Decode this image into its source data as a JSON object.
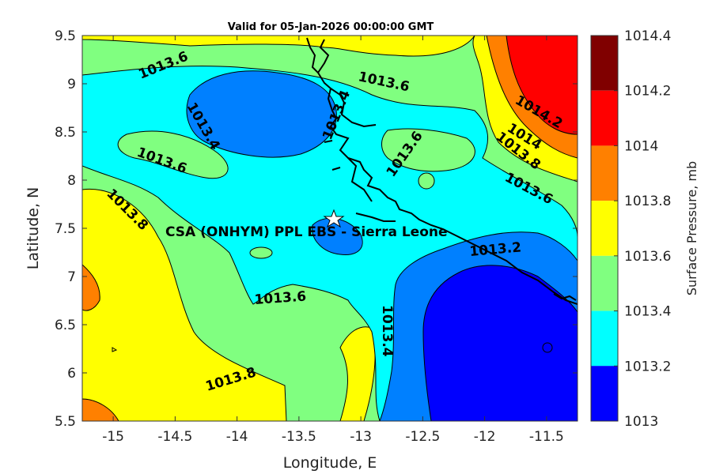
{
  "title": "Valid for 05-Jan-2026 00:00:00 GMT",
  "x_axis": {
    "label": "Longitude, E",
    "ticks": [
      "-15",
      "-14.5",
      "-14",
      "-13.5",
      "-13",
      "-12.5",
      "-12",
      "-11.5"
    ]
  },
  "y_axis": {
    "label": "Latitude, N",
    "ticks": [
      "9.5",
      "9",
      "8.5",
      "8",
      "7.5",
      "7",
      "6.5",
      "6",
      "5.5"
    ]
  },
  "site": {
    "label": "CSA (ONHYM) PPL EBS  - Sierra Leone",
    "marker": "star"
  },
  "colorbar": {
    "label": "Surface Pressure, mb",
    "levels": [
      {
        "value": "1014.4",
        "color": "#800000"
      },
      {
        "value": "1014.2",
        "color": "#ff0000"
      },
      {
        "value": "1014",
        "color": "#ff8000"
      },
      {
        "value": "1013.8",
        "color": "#ffff00"
      },
      {
        "value": "1013.6",
        "color": "#80ff80"
      },
      {
        "value": "1013.4",
        "color": "#00ffff"
      },
      {
        "value": "1013.2",
        "color": "#0080ff"
      },
      {
        "value": "1013",
        "color": "#0000ff"
      }
    ]
  },
  "contour_labels": [
    {
      "text": "1013.6"
    },
    {
      "text": "1013.6"
    },
    {
      "text": "1013.4"
    },
    {
      "text": "1013.4"
    },
    {
      "text": "1013.6"
    },
    {
      "text": "1013.6"
    },
    {
      "text": "1014.2"
    },
    {
      "text": "1014"
    },
    {
      "text": "1013.8"
    },
    {
      "text": "1013.6"
    },
    {
      "text": "1013.8"
    },
    {
      "text": "1013.2"
    },
    {
      "text": "1013.6"
    },
    {
      "text": "1013.4"
    },
    {
      "text": "1013.8"
    }
  ]
}
